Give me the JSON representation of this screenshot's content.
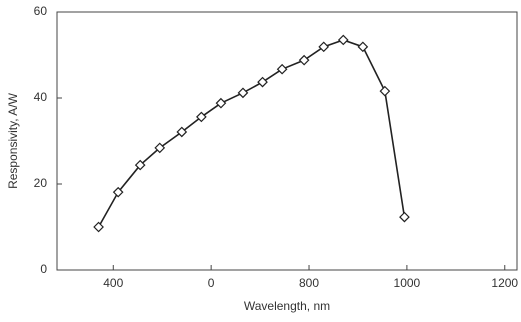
{
  "chart_data": {
    "type": "line",
    "x_label": "Wavelength, nm",
    "y_label": "Responsivity, A/W",
    "x": [
      370,
      410,
      455,
      495,
      540,
      580,
      620,
      665,
      705,
      745,
      790,
      830,
      870,
      910,
      955,
      995
    ],
    "series": [
      {
        "color": "#222222",
        "values": [
          10,
          18.1,
          24.4,
          28.4,
          32.1,
          35.6,
          38.8,
          41.2,
          43.7,
          46.7,
          48.8,
          51.9,
          53.5,
          51.9,
          41.6,
          12.3
        ]
      }
    ],
    "xlim": [
      285,
      1225
    ],
    "xticks": [
      400,
      {
        "value": 600,
        "label": "0"
      },
      800,
      1000,
      1200
    ],
    "ylim": [
      0,
      60
    ],
    "yticks": [
      0,
      20,
      40,
      60
    ]
  }
}
